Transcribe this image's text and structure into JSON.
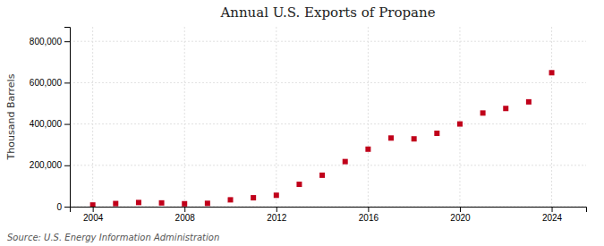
{
  "chart_data": {
    "type": "scatter",
    "title": "Annual U.S. Exports of Propane",
    "ylabel": "Thousand Barrels",
    "source": "Source: U.S. Energy Information Administration",
    "x": [
      2004,
      2005,
      2006,
      2007,
      2008,
      2009,
      2010,
      2011,
      2012,
      2013,
      2014,
      2015,
      2016,
      2017,
      2018,
      2019,
      2020,
      2021,
      2022,
      2023,
      2024
    ],
    "values": [
      8000,
      15000,
      20000,
      18000,
      14000,
      16000,
      33000,
      43000,
      55000,
      108000,
      152000,
      218000,
      278000,
      332000,
      328000,
      355000,
      400000,
      453000,
      475000,
      507000,
      648000
    ],
    "color": "#c0001a",
    "marker": "square",
    "xlim": [
      2003.0,
      2025.5
    ],
    "xticks": [
      2004,
      2008,
      2012,
      2016,
      2020,
      2024
    ],
    "ylim": [
      0,
      870000
    ],
    "yticks": [
      0,
      {
        "value": 200000,
        "label": "200,000"
      },
      {
        "value": 400000,
        "label": "400,000"
      },
      {
        "value": 600000,
        "label": "600,000"
      },
      {
        "value": 800000,
        "label": "800,000"
      }
    ],
    "grid": true
  }
}
